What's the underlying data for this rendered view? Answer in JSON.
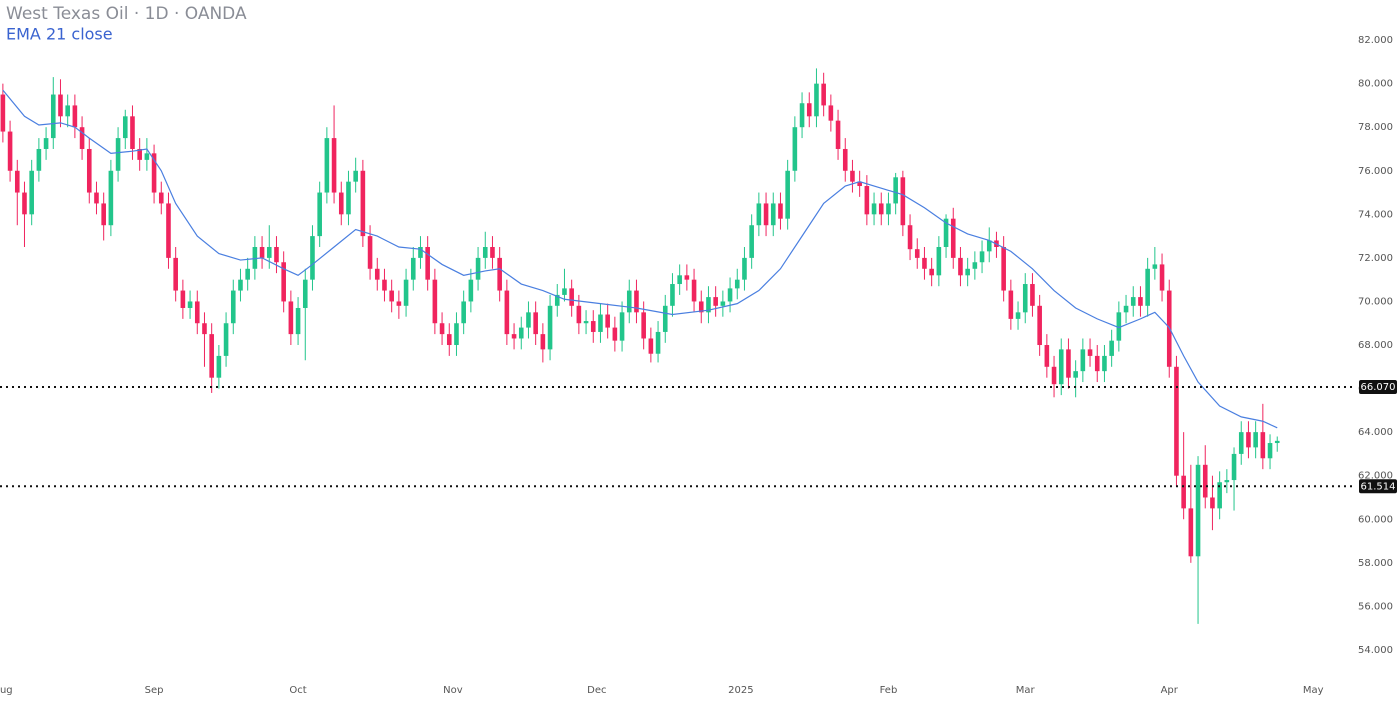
{
  "chart_data": {
    "type": "candlestick",
    "title": "West Texas Oil · 1D · OANDA",
    "up_color": "#22c58b",
    "down_color": "#f0245e",
    "candles": [
      [
        79.5,
        80.0,
        77.3,
        77.8
      ],
      [
        77.8,
        78.3,
        75.5,
        76
      ],
      [
        76,
        76.5,
        73.5,
        75
      ],
      [
        75,
        75.5,
        72.5,
        74
      ],
      [
        74,
        76.5,
        73.5,
        76
      ],
      [
        76,
        77.5,
        75.5,
        77
      ],
      [
        77,
        78,
        76.5,
        77.5
      ],
      [
        77.5,
        80.3,
        77,
        79.5
      ],
      [
        79.5,
        80.2,
        78,
        78.5
      ],
      [
        78.5,
        79.5,
        78,
        79
      ],
      [
        79,
        79.5,
        77.5,
        78
      ],
      [
        78,
        78.5,
        76.5,
        77
      ],
      [
        77,
        77.5,
        74.5,
        75
      ],
      [
        75,
        75.5,
        74,
        74.5
      ],
      [
        74.5,
        75,
        72.8,
        73.5
      ],
      [
        73.5,
        76.5,
        73,
        76
      ],
      [
        76,
        78,
        75.5,
        77.5
      ],
      [
        77.5,
        78.8,
        77,
        78.5
      ],
      [
        78.5,
        79,
        76.5,
        77
      ],
      [
        77,
        77.5,
        76,
        76.5
      ],
      [
        76.5,
        77.5,
        76,
        76.8
      ],
      [
        76.8,
        77.2,
        74.5,
        75
      ],
      [
        75,
        75.5,
        74,
        74.5
      ],
      [
        74.5,
        75,
        71.5,
        72
      ],
      [
        72,
        72.5,
        70,
        70.5
      ],
      [
        70.5,
        71,
        69.2,
        69.7
      ],
      [
        69.7,
        70.5,
        69.2,
        70
      ],
      [
        70,
        70.5,
        68.5,
        69
      ],
      [
        69,
        69.5,
        67,
        68.5
      ],
      [
        68.5,
        69,
        65.8,
        66.5
      ],
      [
        66.5,
        68,
        66,
        67.5
      ],
      [
        67.5,
        69.5,
        67,
        69
      ],
      [
        69,
        71,
        68.5,
        70.5
      ],
      [
        70.5,
        71.5,
        70,
        71
      ],
      [
        71,
        72,
        70.5,
        71.5
      ],
      [
        71.5,
        73,
        71,
        72.5
      ],
      [
        72.5,
        73,
        71.5,
        72
      ],
      [
        72,
        73.5,
        71.5,
        72.5
      ],
      [
        72.5,
        73,
        71.3,
        71.8
      ],
      [
        71.8,
        72.3,
        69.5,
        70
      ],
      [
        70,
        70.5,
        68,
        68.5
      ],
      [
        68.5,
        70.2,
        68,
        69.7
      ],
      [
        69.7,
        71.5,
        67.3,
        71
      ],
      [
        71,
        73.5,
        70.5,
        73
      ],
      [
        73,
        75.5,
        72.5,
        75
      ],
      [
        75,
        78,
        74.5,
        77.5
      ],
      [
        77.5,
        79,
        74.5,
        75
      ],
      [
        75,
        75.5,
        73.5,
        74
      ],
      [
        74,
        76,
        73.5,
        75.5
      ],
      [
        75.5,
        76.6,
        75,
        76
      ],
      [
        76,
        76.5,
        72.5,
        73
      ],
      [
        73,
        73.5,
        71,
        71.5
      ],
      [
        71.5,
        72,
        70.5,
        71
      ],
      [
        71,
        71.5,
        70,
        70.5
      ],
      [
        70.5,
        71,
        69.5,
        70
      ],
      [
        70,
        70.5,
        69.2,
        69.8
      ],
      [
        69.8,
        71.5,
        69.3,
        71
      ],
      [
        71,
        72.5,
        70.5,
        72
      ],
      [
        72,
        73,
        71.5,
        72.5
      ],
      [
        72.5,
        73,
        70.5,
        71
      ],
      [
        71,
        71.5,
        68.5,
        69
      ],
      [
        69,
        69.5,
        68,
        68.5
      ],
      [
        68.5,
        69,
        67.5,
        68
      ],
      [
        68,
        69.5,
        67.5,
        69
      ],
      [
        69,
        70.5,
        68.5,
        70
      ],
      [
        70,
        71.5,
        69.5,
        71
      ],
      [
        71,
        72.5,
        70.5,
        72
      ],
      [
        72,
        73.2,
        71.5,
        72.5
      ],
      [
        72.5,
        73,
        71.5,
        72
      ],
      [
        72,
        72.5,
        70,
        70.5
      ],
      [
        70.5,
        71,
        68,
        68.5
      ],
      [
        68.5,
        69,
        67.8,
        68.3
      ],
      [
        68.3,
        69.3,
        67.8,
        68.8
      ],
      [
        68.8,
        70,
        68.3,
        69.5
      ],
      [
        69.5,
        70,
        68,
        68.5
      ],
      [
        68.5,
        69,
        67.2,
        67.8
      ],
      [
        67.8,
        70.3,
        67.3,
        69.8
      ],
      [
        69.8,
        70.8,
        69.3,
        70.3
      ],
      [
        70.3,
        71.5,
        70,
        70.6
      ],
      [
        70.6,
        71,
        69.3,
        69.8
      ],
      [
        69.8,
        70.3,
        68.5,
        69
      ],
      [
        69,
        69.6,
        68.5,
        69.1
      ],
      [
        69.1,
        69.6,
        68.1,
        68.6
      ],
      [
        68.6,
        69.9,
        68.1,
        69.4
      ],
      [
        69.4,
        69.9,
        68.3,
        68.8
      ],
      [
        68.8,
        69.3,
        67.7,
        68.2
      ],
      [
        68.2,
        70,
        67.7,
        69.5
      ],
      [
        69.5,
        71,
        69,
        70.5
      ],
      [
        70.5,
        71,
        69,
        69.5
      ],
      [
        69.5,
        70,
        67.8,
        68.3
      ],
      [
        68.3,
        68.8,
        67.2,
        67.6
      ],
      [
        67.6,
        69.1,
        67.2,
        68.6
      ],
      [
        68.6,
        70.3,
        68.1,
        69.8
      ],
      [
        69.8,
        71.3,
        69.3,
        70.8
      ],
      [
        70.8,
        71.7,
        70.3,
        71.2
      ],
      [
        71.2,
        71.7,
        70.5,
        71
      ],
      [
        71,
        71.5,
        69.5,
        70
      ],
      [
        70,
        70.5,
        69,
        69.5
      ],
      [
        69.5,
        70.7,
        69,
        70.2
      ],
      [
        70.2,
        70.7,
        69.3,
        69.8
      ],
      [
        69.8,
        70.5,
        69.3,
        70
      ],
      [
        70,
        71.1,
        69.5,
        70.6
      ],
      [
        70.6,
        71.5,
        70.1,
        71
      ],
      [
        71,
        72.5,
        70.5,
        72
      ],
      [
        72,
        74,
        71.5,
        73.5
      ],
      [
        73.5,
        75,
        73,
        74.5
      ],
      [
        74.5,
        75,
        73,
        73.5
      ],
      [
        73.5,
        75,
        73,
        74.5
      ],
      [
        74.5,
        75,
        73.3,
        73.8
      ],
      [
        73.8,
        76.5,
        73.3,
        76
      ],
      [
        76,
        78.5,
        75.5,
        78
      ],
      [
        78,
        79.6,
        77.5,
        79.1
      ],
      [
        79.1,
        79.6,
        78,
        78.5
      ],
      [
        78.5,
        80.7,
        78,
        80
      ],
      [
        80,
        80.5,
        78.5,
        79
      ],
      [
        79,
        79.5,
        77.8,
        78.3
      ],
      [
        78.3,
        78.8,
        76.5,
        77
      ],
      [
        77,
        77.5,
        75.5,
        76
      ],
      [
        76,
        76.5,
        75,
        75.5
      ],
      [
        75.5,
        76,
        74.8,
        75.3
      ],
      [
        75.3,
        75.8,
        73.5,
        74
      ],
      [
        74,
        75,
        73.5,
        74.5
      ],
      [
        74.5,
        75,
        73.5,
        74
      ],
      [
        74,
        75,
        73.5,
        74.5
      ],
      [
        74.5,
        75.9,
        74,
        75.7
      ],
      [
        75.7,
        76,
        73,
        73.5
      ],
      [
        73.5,
        74,
        71.9,
        72.4
      ],
      [
        72.4,
        72.9,
        71.5,
        72
      ],
      [
        72,
        72.5,
        71,
        71.5
      ],
      [
        71.5,
        72,
        70.7,
        71.2
      ],
      [
        71.2,
        73,
        70.7,
        72.5
      ],
      [
        72.5,
        74,
        72,
        73.8
      ],
      [
        73.8,
        74.3,
        71.5,
        72
      ],
      [
        72,
        72.5,
        70.7,
        71.2
      ],
      [
        71.2,
        72,
        70.7,
        71.5
      ],
      [
        71.5,
        72.3,
        71,
        71.8
      ],
      [
        71.8,
        72.8,
        71.3,
        72.3
      ],
      [
        72.3,
        73.4,
        71.8,
        72.8
      ],
      [
        72.8,
        73.2,
        72,
        72.5
      ],
      [
        72.5,
        73,
        70,
        70.5
      ],
      [
        70.5,
        71,
        68.7,
        69.2
      ],
      [
        69.2,
        70,
        68.7,
        69.5
      ],
      [
        69.5,
        71.3,
        69,
        70.8
      ],
      [
        70.8,
        71.3,
        69.3,
        69.8
      ],
      [
        69.8,
        70.3,
        67.5,
        68
      ],
      [
        68,
        68.5,
        66.5,
        67
      ],
      [
        67,
        67.5,
        65.6,
        66.2
      ],
      [
        66.2,
        68.3,
        65.7,
        67.8
      ],
      [
        67.8,
        68.3,
        66,
        66.5
      ],
      [
        66.5,
        67.3,
        65.6,
        66.8
      ],
      [
        66.8,
        68.3,
        66.3,
        67.8
      ],
      [
        67.8,
        68.3,
        67,
        67.5
      ],
      [
        67.5,
        68,
        66.3,
        66.8
      ],
      [
        66.8,
        68,
        66.3,
        67.5
      ],
      [
        67.5,
        68.7,
        67,
        68.2
      ],
      [
        68.2,
        70,
        67.7,
        69.5
      ],
      [
        69.5,
        70.3,
        69,
        69.8
      ],
      [
        69.8,
        70.7,
        69.3,
        70.2
      ],
      [
        70.2,
        70.7,
        69.3,
        69.8
      ],
      [
        69.8,
        72,
        69.3,
        71.5
      ],
      [
        71.5,
        72.5,
        71,
        71.7
      ],
      [
        71.7,
        72.2,
        70,
        70.5
      ],
      [
        70.5,
        71,
        66.5,
        67
      ],
      [
        67,
        67.5,
        61.5,
        62
      ],
      [
        62,
        64,
        60,
        60.5
      ],
      [
        60.5,
        62.5,
        58,
        58.3
      ],
      [
        58.3,
        62.9,
        55.2,
        62.5
      ],
      [
        62.5,
        63.4,
        60.5,
        61
      ],
      [
        61,
        62,
        59.5,
        60.5
      ],
      [
        60.5,
        62.2,
        60,
        61.7
      ],
      [
        61.7,
        62.3,
        61.2,
        61.8
      ],
      [
        61.8,
        63.3,
        60.4,
        63
      ],
      [
        63,
        64.5,
        62.5,
        64
      ],
      [
        64,
        64.5,
        62.8,
        63.3
      ],
      [
        63.3,
        64.5,
        62.8,
        64
      ],
      [
        64,
        65.3,
        62.3,
        62.8
      ],
      [
        62.8,
        63.9,
        62.3,
        63.5
      ],
      [
        63.5,
        63.8,
        63.1,
        63.6
      ]
    ],
    "ema": {
      "name": "EMA 21 close",
      "color": "#4a7fe0",
      "x": [
        0,
        3,
        5,
        8,
        10,
        12,
        15,
        18,
        20,
        22,
        24,
        27,
        30,
        33,
        36,
        39,
        41,
        43,
        46,
        49,
        52,
        55,
        58,
        61,
        64,
        67,
        69,
        72,
        75,
        78,
        83,
        88,
        93,
        98,
        102,
        105,
        108,
        111,
        114,
        117,
        119,
        122,
        125,
        128,
        131,
        134,
        137,
        140,
        143,
        146,
        149,
        152,
        155,
        158,
        160,
        162,
        164,
        166,
        169,
        172,
        175,
        177
      ],
      "values": [
        79.7,
        78.5,
        78.1,
        78.2,
        78,
        77.5,
        76.8,
        76.9,
        77,
        76,
        74.5,
        73,
        72.2,
        71.9,
        72,
        71.5,
        71.2,
        71.7,
        72.5,
        73.3,
        73,
        72.5,
        72.4,
        71.7,
        71.2,
        71.4,
        71.5,
        70.8,
        70.5,
        70.1,
        69.9,
        69.7,
        69.4,
        69.6,
        69.9,
        70.5,
        71.5,
        73,
        74.5,
        75.3,
        75.5,
        75.2,
        74.9,
        74.3,
        73.6,
        73.1,
        72.8,
        72.3,
        71.5,
        70.5,
        69.7,
        69.2,
        68.8,
        69.2,
        69.5,
        68.8,
        67.5,
        66.3,
        65.2,
        64.7,
        64.5,
        64.2
      ]
    },
    "levels": [
      {
        "value": 66.07,
        "label": "66.070"
      },
      {
        "value": 61.514,
        "label": "61.514"
      }
    ],
    "ylim": [
      52.85,
      83.84
    ],
    "yticks": [
      {
        "value": 54,
        "label": "54.000"
      },
      {
        "value": 56,
        "label": "56.000"
      },
      {
        "value": 58,
        "label": "58.000"
      },
      {
        "value": 60,
        "label": "60.000"
      },
      {
        "value": 62,
        "label": "62.000"
      },
      {
        "value": 64,
        "label": "64.000"
      },
      {
        "value": 66,
        "label": "66.000"
      },
      {
        "value": 68,
        "label": "68.000"
      },
      {
        "value": 70,
        "label": "70.000"
      },
      {
        "value": 72,
        "label": "72.000"
      },
      {
        "value": 74,
        "label": "74.000"
      },
      {
        "value": 76,
        "label": "76.000"
      },
      {
        "value": 78,
        "label": "78.000"
      },
      {
        "value": 80,
        "label": "80.000"
      },
      {
        "value": 82,
        "label": "82.000"
      }
    ],
    "xlim": [
      -0.4,
      187.8
    ],
    "xticks": [
      {
        "value": 0,
        "label": "Aug"
      },
      {
        "value": 21,
        "label": "Sep"
      },
      {
        "value": 41,
        "label": "Oct"
      },
      {
        "value": 62.5,
        "label": "Nov"
      },
      {
        "value": 82.5,
        "label": "Dec"
      },
      {
        "value": 102.5,
        "label": "2025"
      },
      {
        "value": 123,
        "label": "Feb"
      },
      {
        "value": 142,
        "label": "Mar"
      },
      {
        "value": 162,
        "label": "Apr"
      },
      {
        "value": 182,
        "label": "May"
      }
    ]
  }
}
